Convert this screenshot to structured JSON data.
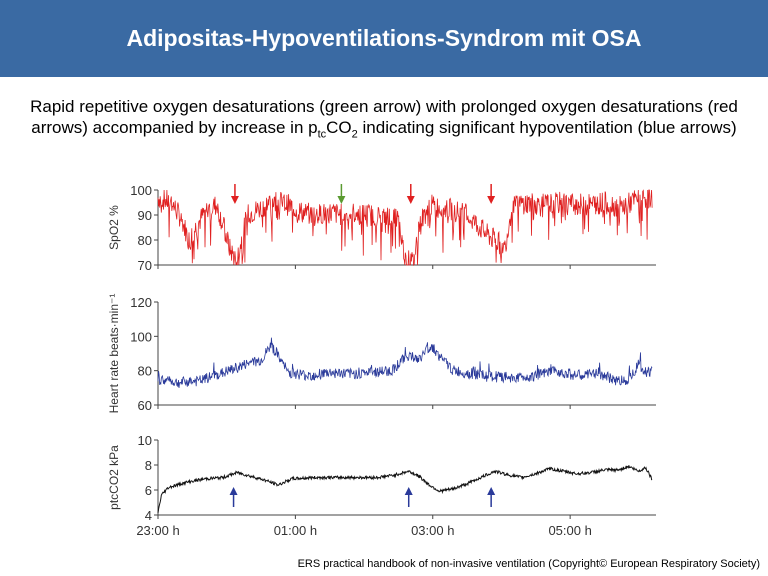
{
  "header": {
    "title": "Adipositas-Hypoventilations-Syndrom mit OSA"
  },
  "caption": {
    "part1": "Rapid repetitive oxygen desaturations (green arrow) with prolonged oxygen desaturations (red arrows) accompanied by increase in p",
    "sub1": "tc",
    "part2": "CO",
    "sub2": "2",
    "part3": " indicating significant hypoventilation (blue arrows)"
  },
  "footer": {
    "text": "ERS practical handbook of non-invasive ventilation (Copyright© European Respiratory Society)"
  },
  "chart_data": {
    "type": "line",
    "x_start_hour": 23.0,
    "x_end_hour": 30.25,
    "x_ticks": [
      {
        "hour": 23,
        "label": "23:00 h"
      },
      {
        "hour": 25,
        "label": "01:00 h"
      },
      {
        "hour": 27,
        "label": "03:00 h"
      },
      {
        "hour": 29,
        "label": "05:00 h"
      }
    ],
    "panels": [
      {
        "id": "spo2",
        "ylabel": "SpO2 %",
        "ylim": [
          70,
          100
        ],
        "yticks": [
          70,
          80,
          90,
          100
        ],
        "color": "#e02020",
        "series": [
          [
            23.0,
            97
          ],
          [
            23.2,
            95
          ],
          [
            23.35,
            88
          ],
          [
            23.45,
            80
          ],
          [
            23.55,
            85
          ],
          [
            23.7,
            92
          ],
          [
            23.85,
            94
          ],
          [
            23.95,
            86
          ],
          [
            24.05,
            76
          ],
          [
            24.15,
            72
          ],
          [
            24.3,
            90
          ],
          [
            24.5,
            93
          ],
          [
            24.7,
            96
          ],
          [
            24.9,
            94
          ],
          [
            25.1,
            91
          ],
          [
            25.3,
            90
          ],
          [
            25.5,
            91
          ],
          [
            25.7,
            90
          ],
          [
            25.9,
            91
          ],
          [
            26.1,
            90
          ],
          [
            26.3,
            89
          ],
          [
            26.4,
            90
          ],
          [
            26.5,
            88
          ],
          [
            26.6,
            72
          ],
          [
            26.72,
            71
          ],
          [
            26.8,
            86
          ],
          [
            26.95,
            94
          ],
          [
            27.1,
            93
          ],
          [
            27.3,
            92
          ],
          [
            27.5,
            90
          ],
          [
            27.65,
            86
          ],
          [
            27.8,
            82
          ],
          [
            27.95,
            79
          ],
          [
            28.05,
            77
          ],
          [
            28.15,
            93
          ],
          [
            28.35,
            95
          ],
          [
            28.6,
            94
          ],
          [
            28.9,
            95
          ],
          [
            29.2,
            94
          ],
          [
            29.5,
            95
          ],
          [
            29.75,
            93
          ],
          [
            29.95,
            96
          ],
          [
            30.1,
            97
          ],
          [
            30.2,
            97
          ]
        ],
        "arrows": [
          {
            "hour": 24.12,
            "color": "#e02020"
          },
          {
            "hour": 25.67,
            "color": "#5a9a30"
          },
          {
            "hour": 26.68,
            "color": "#e02020"
          },
          {
            "hour": 27.85,
            "color": "#e02020"
          }
        ]
      },
      {
        "id": "hr",
        "ylabel": "Heart rate beats·min⁻¹",
        "ylim": [
          60,
          120
        ],
        "yticks": [
          60,
          80,
          100,
          120
        ],
        "color": "#2a3a9a",
        "series": [
          [
            23.0,
            75
          ],
          [
            23.3,
            73
          ],
          [
            23.6,
            74
          ],
          [
            23.9,
            78
          ],
          [
            24.1,
            81
          ],
          [
            24.3,
            84
          ],
          [
            24.5,
            86
          ],
          [
            24.65,
            95
          ],
          [
            24.75,
            88
          ],
          [
            24.9,
            79
          ],
          [
            25.2,
            77
          ],
          [
            25.5,
            79
          ],
          [
            25.8,
            78
          ],
          [
            26.1,
            79
          ],
          [
            26.4,
            80
          ],
          [
            26.55,
            86
          ],
          [
            26.65,
            89
          ],
          [
            26.8,
            86
          ],
          [
            26.9,
            92
          ],
          [
            27.0,
            94
          ],
          [
            27.1,
            88
          ],
          [
            27.3,
            80
          ],
          [
            27.6,
            78
          ],
          [
            27.9,
            76
          ],
          [
            28.2,
            76
          ],
          [
            28.5,
            77
          ],
          [
            28.8,
            80
          ],
          [
            29.0,
            78
          ],
          [
            29.2,
            77
          ],
          [
            29.4,
            79
          ],
          [
            29.6,
            75
          ],
          [
            29.8,
            74
          ],
          [
            29.9,
            78
          ],
          [
            30.0,
            84
          ],
          [
            30.1,
            79
          ],
          [
            30.2,
            80
          ]
        ]
      },
      {
        "id": "ptcco2",
        "ylabel": "ptcCO2 kPa",
        "ylim": [
          4,
          10
        ],
        "yticks": [
          4,
          6,
          8,
          10
        ],
        "color": "#111111",
        "series": [
          [
            23.0,
            4.2
          ],
          [
            23.05,
            5.6
          ],
          [
            23.15,
            6.2
          ],
          [
            23.4,
            6.6
          ],
          [
            23.7,
            6.9
          ],
          [
            23.95,
            7.0
          ],
          [
            24.15,
            7.4
          ],
          [
            24.35,
            7.1
          ],
          [
            24.55,
            6.8
          ],
          [
            24.75,
            6.4
          ],
          [
            24.95,
            6.9
          ],
          [
            25.3,
            7.0
          ],
          [
            25.6,
            7.0
          ],
          [
            25.9,
            7.0
          ],
          [
            26.2,
            7.0
          ],
          [
            26.45,
            7.2
          ],
          [
            26.65,
            7.5
          ],
          [
            26.8,
            7.1
          ],
          [
            26.95,
            6.4
          ],
          [
            27.1,
            5.9
          ],
          [
            27.3,
            6.1
          ],
          [
            27.5,
            6.5
          ],
          [
            27.7,
            7.0
          ],
          [
            27.9,
            7.5
          ],
          [
            28.1,
            7.2
          ],
          [
            28.3,
            7.0
          ],
          [
            28.5,
            7.3
          ],
          [
            28.7,
            7.7
          ],
          [
            28.9,
            7.5
          ],
          [
            29.1,
            7.3
          ],
          [
            29.3,
            7.4
          ],
          [
            29.5,
            7.6
          ],
          [
            29.7,
            7.6
          ],
          [
            29.85,
            7.9
          ],
          [
            30.0,
            7.5
          ],
          [
            30.1,
            7.8
          ],
          [
            30.2,
            6.8
          ]
        ],
        "arrows": [
          {
            "hour": 24.1,
            "color": "#2a3a9a"
          },
          {
            "hour": 26.65,
            "color": "#2a3a9a"
          },
          {
            "hour": 27.85,
            "color": "#2a3a9a"
          }
        ]
      }
    ]
  }
}
